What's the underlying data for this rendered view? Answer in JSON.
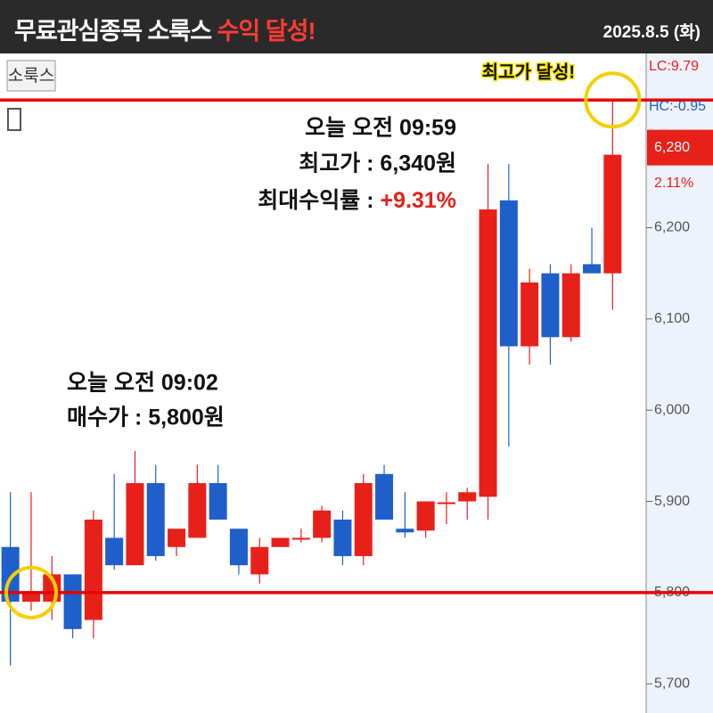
{
  "header": {
    "title": "무료관심종목 소룩스",
    "title_highlight": "수익 달성!",
    "date": "2025.8.5 (화)"
  },
  "chart_data": {
    "type": "candlestick",
    "symbol": "소룩스",
    "up_color": "#e8201a",
    "down_color": "#1f5fc9",
    "open": [
      5850,
      5790,
      5790,
      5820,
      5770,
      5860,
      5830,
      5920,
      5850,
      5860,
      5920,
      5870,
      5820,
      5850,
      5858,
      5860,
      5880,
      5840,
      5930,
      5870,
      5868,
      5897,
      5900,
      5905,
      6230,
      6070,
      6150,
      6080,
      6160,
      6150
    ],
    "close": [
      5790,
      5800,
      5820,
      5760,
      5880,
      5830,
      5920,
      5840,
      5870,
      5920,
      5880,
      5830,
      5850,
      5860,
      5860,
      5890,
      5840,
      5920,
      5880,
      5866,
      5900,
      5899,
      5910,
      6220,
      6070,
      6140,
      6080,
      6150,
      6150,
      6280
    ],
    "high": [
      5910,
      5910,
      5840,
      5820,
      5890,
      5930,
      5960,
      5940,
      5870,
      5940,
      5940,
      5870,
      5860,
      5860,
      5870,
      5895,
      5890,
      5930,
      5940,
      5910,
      5900,
      5910,
      5915,
      6270,
      6270,
      6155,
      6160,
      6160,
      6200,
      6340
    ],
    "low": [
      5720,
      5780,
      5770,
      5750,
      5750,
      5825,
      5830,
      5835,
      5840,
      5860,
      5880,
      5820,
      5810,
      5850,
      5855,
      5855,
      5830,
      5830,
      5880,
      5860,
      5860,
      5875,
      5880,
      5880,
      5960,
      6050,
      6050,
      6075,
      6150,
      6110
    ],
    "ylim": [
      5668,
      6391
    ],
    "yticks": [
      {
        "value": 5700,
        "label": "5,700"
      },
      {
        "value": 5800,
        "label": "5,800"
      },
      {
        "value": 5900,
        "label": "5,900"
      },
      {
        "value": 6000,
        "label": "6,000"
      },
      {
        "value": 6100,
        "label": "6,100"
      },
      {
        "value": 6200,
        "label": "6,200"
      }
    ],
    "hlines": [
      6340,
      5800
    ],
    "hline_color": "#e60000",
    "last_price": {
      "value": 6280,
      "label": "6,280"
    },
    "change_pct": "2.11%",
    "lc": "LC:9.79",
    "hc": "HC:-0.95",
    "annotations": {
      "peak_label": "최고가 달성!",
      "high_time": "오늘 오전 09:59",
      "high_price": "최고가 : 6,340원",
      "max_return_label": "최대수익률 : ",
      "max_return": "+9.31%",
      "buy_time": "오늘 오전 09:02",
      "buy_price": "매수가 : 5,800원"
    }
  }
}
